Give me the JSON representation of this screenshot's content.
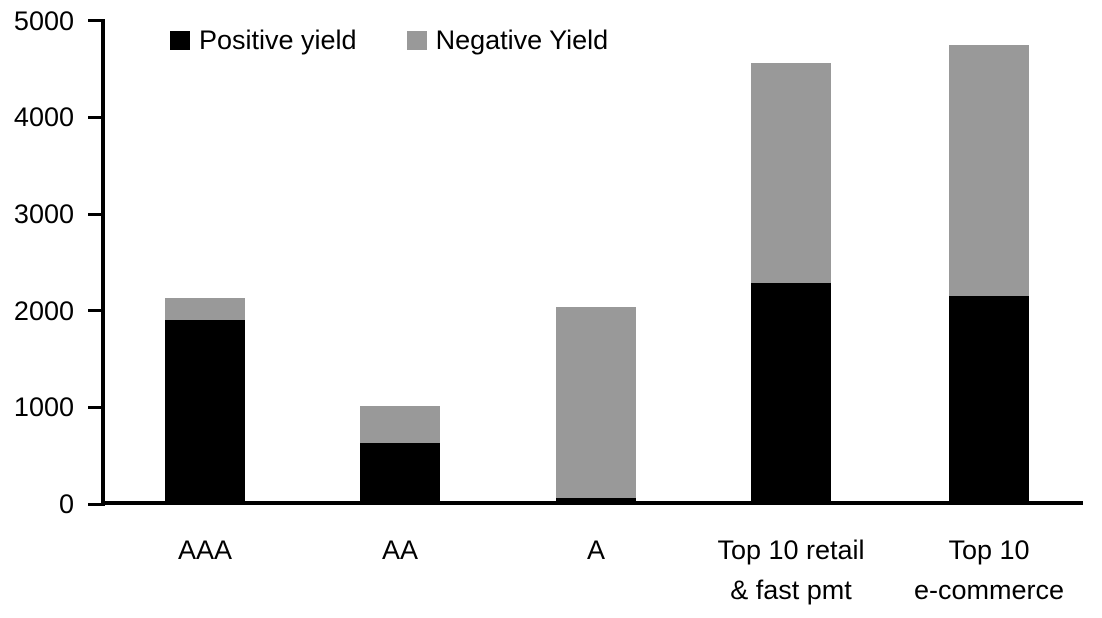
{
  "page": {
    "background_color": "#ffffff"
  },
  "chart_data": {
    "type": "bar",
    "stacked": true,
    "categories": [
      "AAA",
      "AA",
      "A",
      "Top 10 retail\n& fast pmt",
      "Top 10\ne-commerce"
    ],
    "series": [
      {
        "name": "Positive yield",
        "color": "#000000",
        "values": [
          1890,
          620,
          50,
          2280,
          2140
        ]
      },
      {
        "name": "Negative Yield",
        "color": "#999999",
        "values": [
          230,
          380,
          1980,
          2270,
          2600
        ]
      }
    ],
    "totals": [
      2120,
      1000,
      2030,
      4550,
      4740
    ],
    "ylim": [
      0,
      5000
    ],
    "yticks": [
      0,
      1000,
      2000,
      3000,
      4000,
      5000
    ],
    "xlabel": "",
    "ylabel": "",
    "legend_position": "top",
    "grid": false,
    "axis_color": "#000000"
  }
}
